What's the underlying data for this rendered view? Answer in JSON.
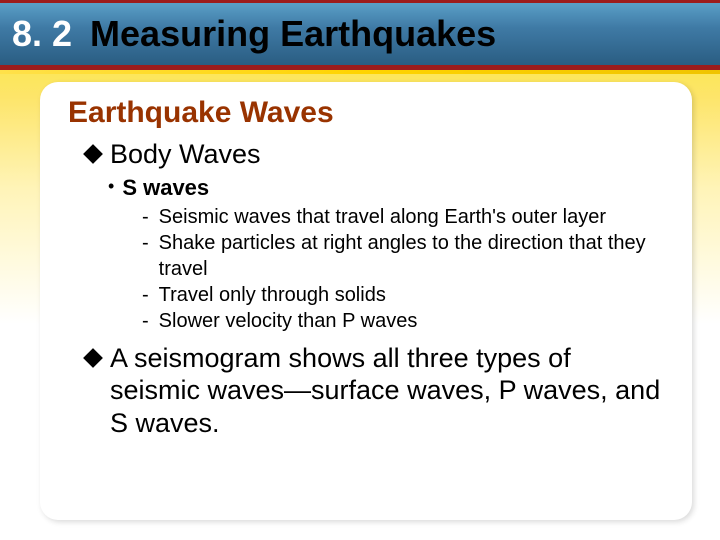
{
  "colors": {
    "header_gradient_top": "#5a9fc7",
    "header_gradient_mid": "#3f7aa5",
    "header_gradient_bottom": "#2a5d82",
    "header_border": "#9c1c1c",
    "yellow_strip": "#ffd400",
    "bg_gradient_top": "#f8ea2a",
    "bg_gradient_bottom": "#ffffff",
    "subtitle_color": "#993300",
    "text_color": "#000000",
    "title_num_color": "#ffffff"
  },
  "typography": {
    "title_fontsize": 36,
    "title_weight": 700,
    "subtitle_fontsize": 30,
    "subtitle_weight": 700,
    "l1_fontsize": 27,
    "l2_fontsize": 22,
    "l2_weight": 700,
    "l3_fontsize": 20,
    "font_family": "Arial"
  },
  "header": {
    "section_number": "8. 2",
    "title": "Measuring Earthquakes"
  },
  "subtitle": "Earthquake Waves",
  "bullets": [
    {
      "marker": "diamond",
      "text": "Body Waves",
      "children": [
        {
          "marker": "dot",
          "text": "S waves",
          "children": [
            {
              "marker": "dash",
              "text": "Seismic waves that travel along Earth's outer layer"
            },
            {
              "marker": "dash",
              "text": "Shake particles at right angles to the direction that they travel"
            },
            {
              "marker": "dash",
              "text": "Travel only through solids"
            },
            {
              "marker": "dash",
              "text": "Slower velocity than P waves"
            }
          ]
        }
      ]
    },
    {
      "marker": "diamond",
      "text": "A seismogram shows all three types of seismic waves—surface waves, P waves, and S waves."
    }
  ]
}
